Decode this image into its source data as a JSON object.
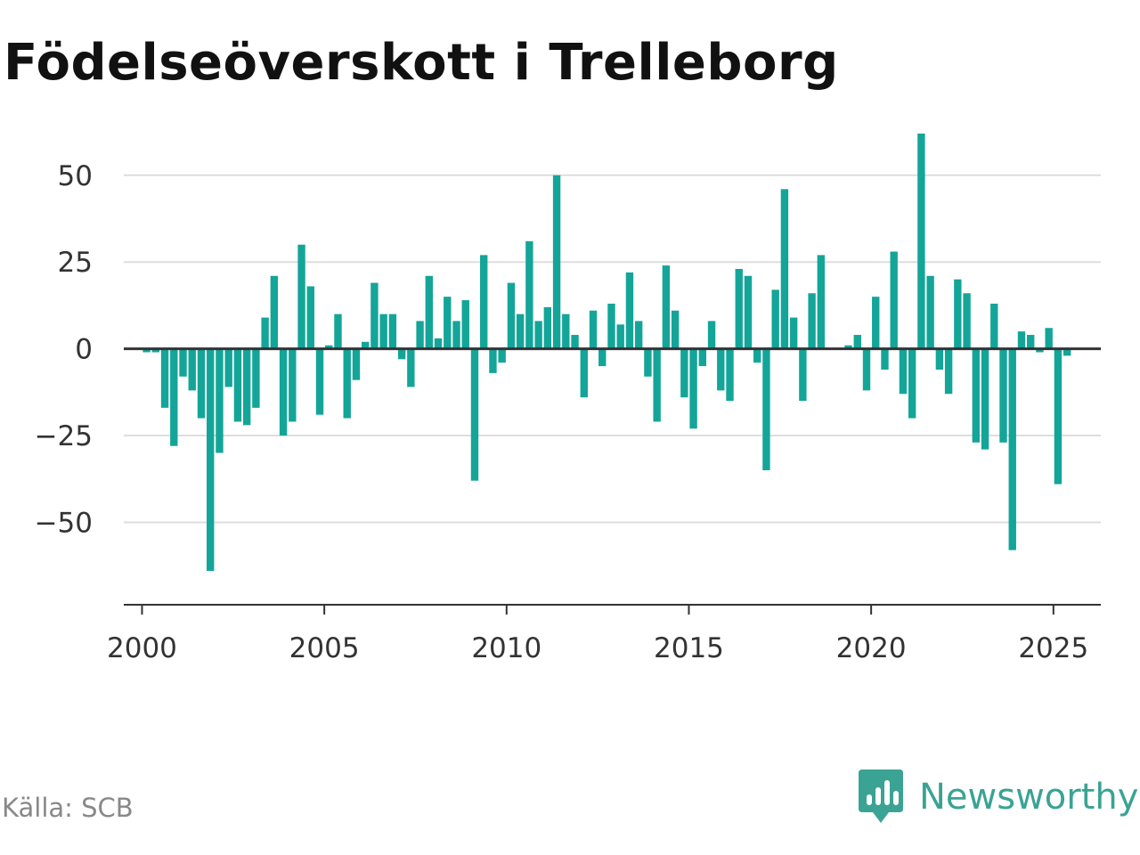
{
  "title": "Födelseöverskott i Trelleborg",
  "source": "Källa: SCB",
  "brand": {
    "name": "Newsworthy",
    "icon": "newsworthy-logo-icon",
    "color": "#3aa394"
  },
  "colors": {
    "bar": "#14a599",
    "grid": "#dddddd",
    "axis": "#333333"
  },
  "chart_data": {
    "type": "bar",
    "title": "Födelseöverskott i Trelleborg",
    "xlabel": "",
    "ylabel": "",
    "ylim": [
      -74,
      62
    ],
    "xlim": [
      1999.5,
      2026.3
    ],
    "grid": true,
    "x_ticks": [
      2000,
      2005,
      2010,
      2015,
      2020,
      2025
    ],
    "y_ticks": [
      -50,
      -25,
      0,
      25,
      50
    ],
    "y_tick_labels": [
      "−50",
      "−25",
      "0",
      "25",
      "50"
    ],
    "x_tick_labels": [
      "2000",
      "2005",
      "2010",
      "2015",
      "2020",
      "2025"
    ],
    "x_unit": "quarter",
    "series": [
      {
        "x": [
          "2000-Q1",
          "2000-Q2",
          "2000-Q3",
          "2000-Q4",
          "2001-Q1",
          "2001-Q2",
          "2001-Q3",
          "2001-Q4",
          "2002-Q1",
          "2002-Q2",
          "2002-Q3",
          "2002-Q4",
          "2003-Q1",
          "2003-Q2",
          "2003-Q3",
          "2003-Q4",
          "2004-Q1",
          "2004-Q2",
          "2004-Q3",
          "2004-Q4",
          "2005-Q1",
          "2005-Q2",
          "2005-Q3",
          "2005-Q4",
          "2006-Q1",
          "2006-Q2",
          "2006-Q3",
          "2006-Q4",
          "2007-Q1",
          "2007-Q2",
          "2007-Q3",
          "2007-Q4",
          "2008-Q1",
          "2008-Q2",
          "2008-Q3",
          "2008-Q4",
          "2009-Q1",
          "2009-Q2",
          "2009-Q3",
          "2009-Q4",
          "2010-Q1",
          "2010-Q2",
          "2010-Q3",
          "2010-Q4",
          "2011-Q1",
          "2011-Q2",
          "2011-Q3",
          "2011-Q4",
          "2012-Q1",
          "2012-Q2",
          "2012-Q3",
          "2012-Q4",
          "2013-Q1",
          "2013-Q2",
          "2013-Q3",
          "2013-Q4",
          "2014-Q1",
          "2014-Q2",
          "2014-Q3",
          "2014-Q4",
          "2015-Q1",
          "2015-Q2",
          "2015-Q3",
          "2015-Q4",
          "2016-Q1",
          "2016-Q2",
          "2016-Q3",
          "2016-Q4",
          "2017-Q1",
          "2017-Q2",
          "2017-Q3",
          "2017-Q4",
          "2018-Q1",
          "2018-Q2",
          "2018-Q3",
          "2018-Q4",
          "2019-Q1",
          "2019-Q2",
          "2019-Q3",
          "2019-Q4",
          "2020-Q1",
          "2020-Q2",
          "2020-Q3",
          "2020-Q4",
          "2021-Q1",
          "2021-Q2",
          "2021-Q3",
          "2021-Q4",
          "2022-Q1",
          "2022-Q2",
          "2022-Q3",
          "2022-Q4",
          "2023-Q1",
          "2023-Q2",
          "2023-Q3",
          "2023-Q4",
          "2024-Q1",
          "2024-Q2",
          "2024-Q3",
          "2024-Q4",
          "2025-Q1",
          "2025-Q2"
        ],
        "values": [
          -1,
          -1,
          -17,
          -28,
          -8,
          -12,
          -20,
          -64,
          -30,
          -11,
          -21,
          -22,
          -17,
          9,
          21,
          -25,
          -21,
          30,
          18,
          -19,
          1,
          10,
          -20,
          -9,
          2,
          19,
          10,
          10,
          -3,
          -11,
          8,
          21,
          3,
          15,
          8,
          14,
          -38,
          27,
          -7,
          -4,
          19,
          10,
          31,
          8,
          12,
          50,
          10,
          4,
          -14,
          11,
          -5,
          13,
          7,
          22,
          8,
          -8,
          -21,
          24,
          11,
          -14,
          -23,
          -5,
          8,
          -12,
          -15,
          23,
          21,
          -4,
          -35,
          17,
          46,
          9,
          -15,
          16,
          27,
          0,
          0,
          1,
          4,
          -12,
          15,
          -6,
          28,
          -13,
          -20,
          62,
          21,
          -6,
          -13,
          20,
          16,
          -27,
          -29,
          13,
          -27,
          -58,
          5,
          4,
          -1,
          6,
          -39,
          -2
        ]
      }
    ]
  }
}
